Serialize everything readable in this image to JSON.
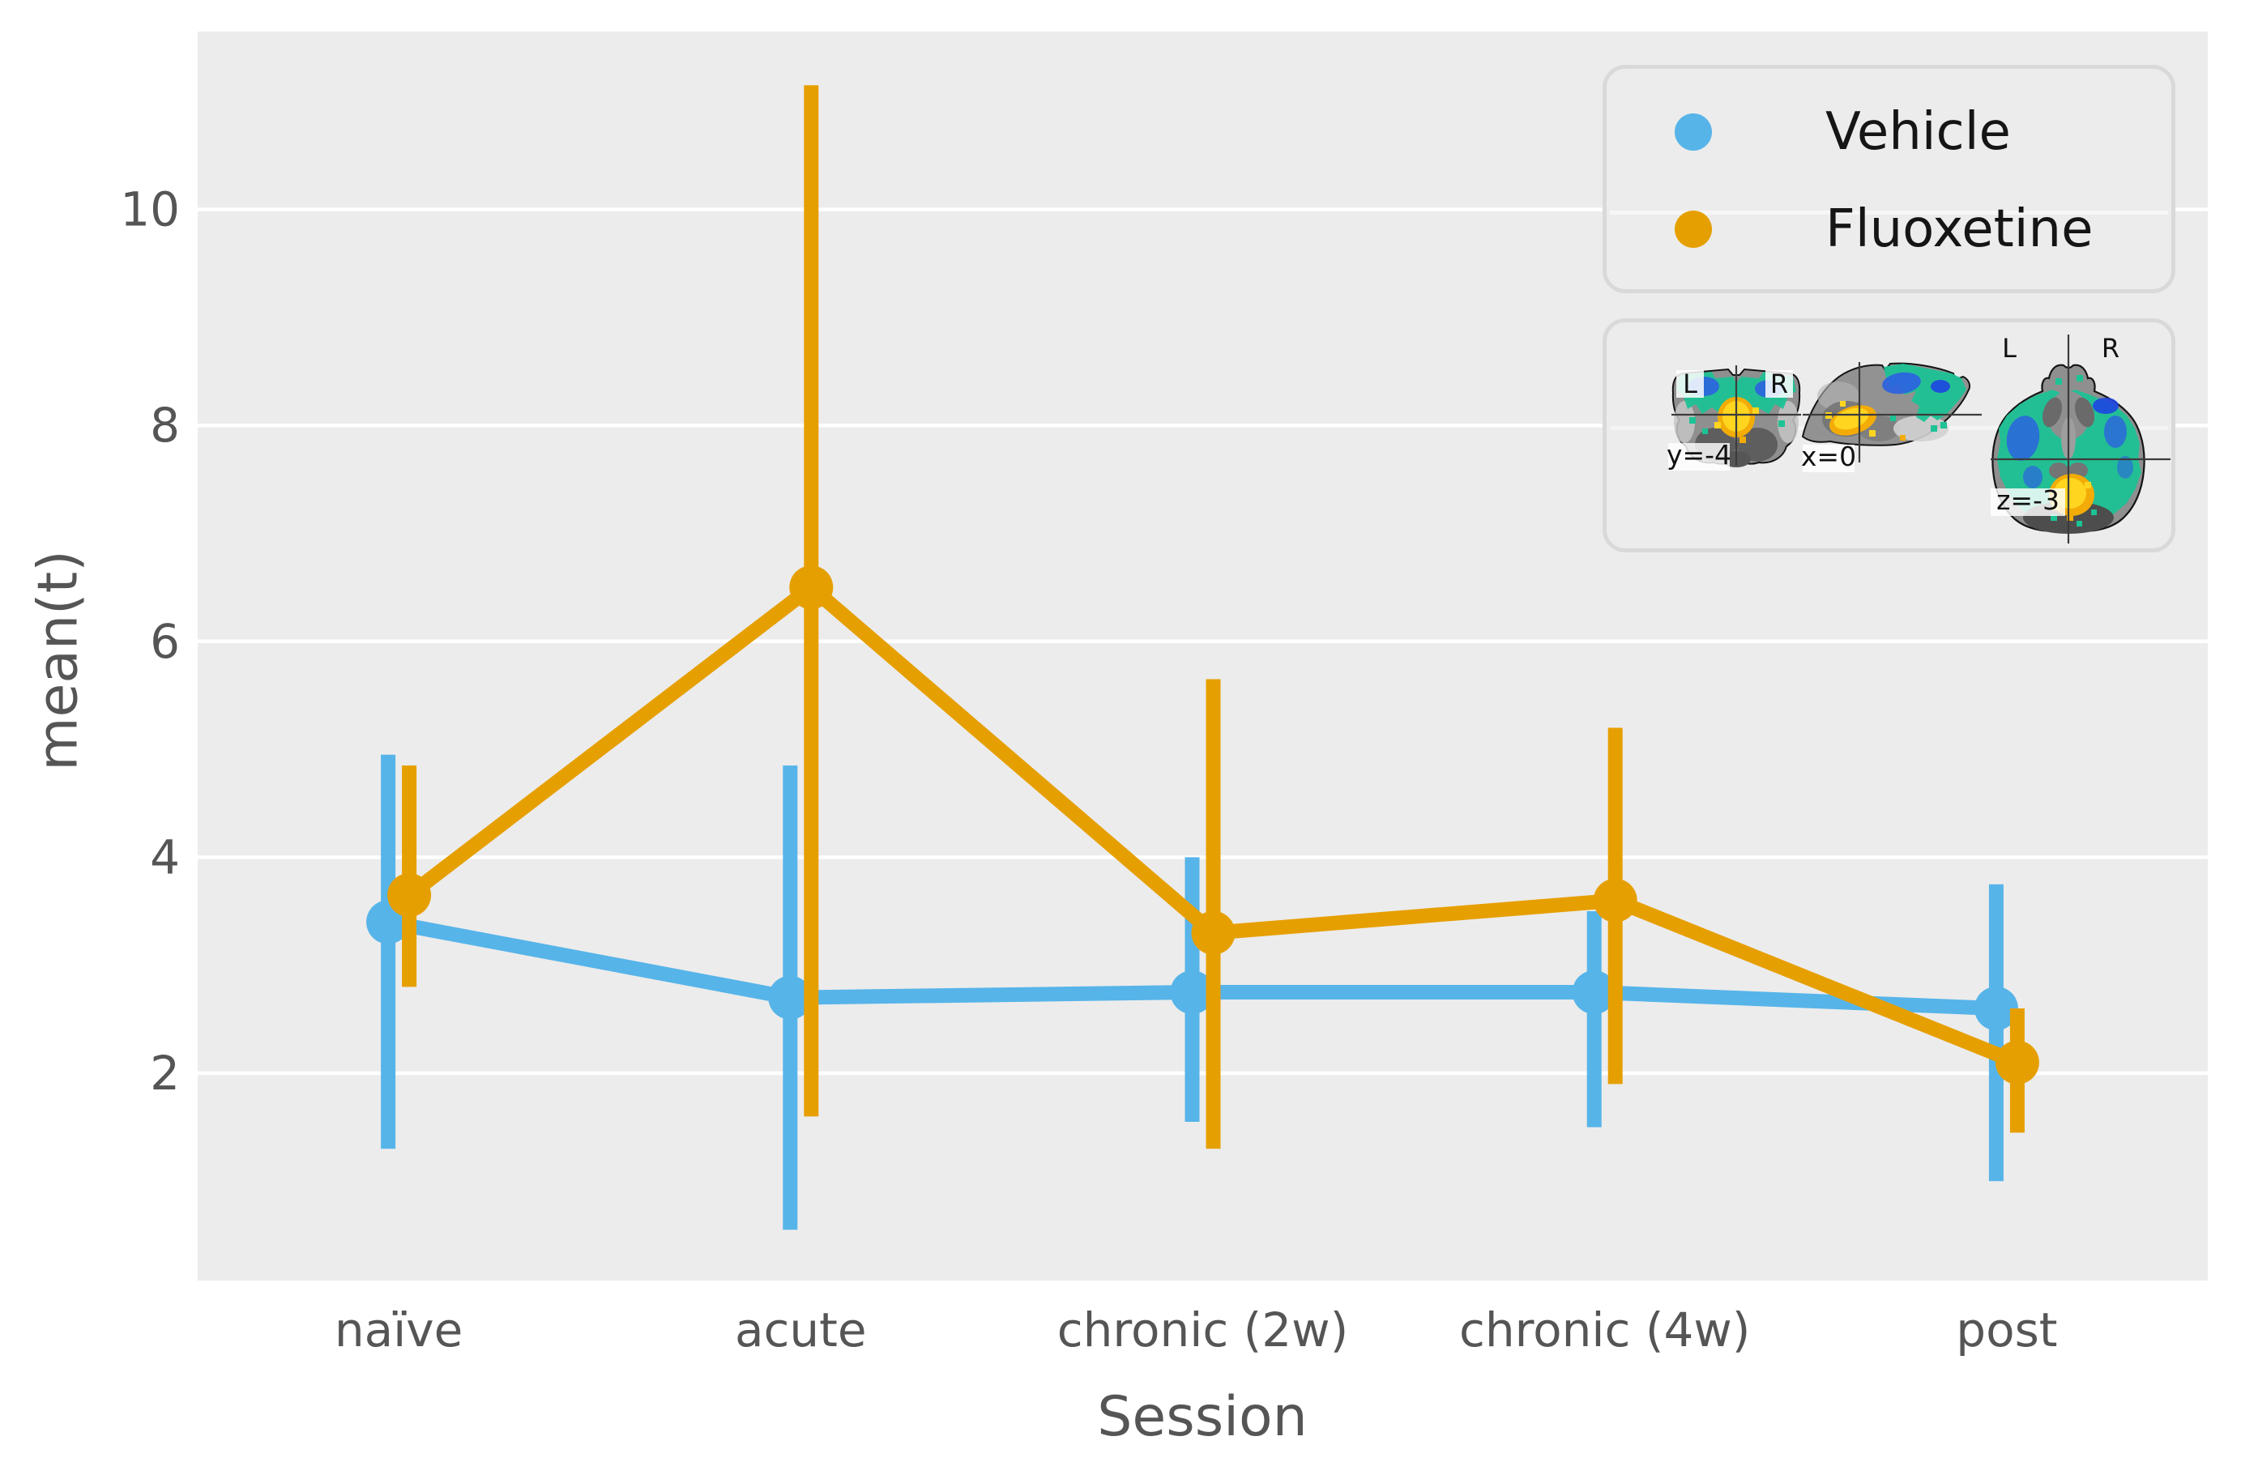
{
  "figure": {
    "background": "#ffffff",
    "plot_background": "#ECECEC",
    "gridline_color": "#ffffff",
    "tick_text_color": "#555555"
  },
  "chart_data": {
    "type": "line",
    "title": "",
    "xlabel": "Session",
    "ylabel": "mean(t)",
    "categories": [
      "naïve",
      "acute",
      "chronic (2w)",
      "chronic (4w)",
      "post"
    ],
    "yticks": [
      2,
      4,
      6,
      8,
      10
    ],
    "ylim": [
      0.1,
      11.65
    ],
    "grid": "horizontal-white-on-gray",
    "legend_position": "upper right",
    "marker": "point-with-error-bars",
    "series": [
      {
        "name": "Vehicle",
        "color": "#56B4E9",
        "means": [
          3.4,
          2.7,
          2.75,
          2.75,
          2.6
        ],
        "err_low": [
          1.3,
          0.55,
          1.55,
          1.5,
          1.0
        ],
        "err_high": [
          4.95,
          4.85,
          4.0,
          3.5,
          3.75
        ]
      },
      {
        "name": "Fluoxetine",
        "color": "#E69F00",
        "means": [
          3.65,
          6.5,
          3.3,
          3.6,
          2.1
        ],
        "err_low": [
          2.8,
          1.6,
          1.3,
          1.9,
          1.45
        ],
        "err_high": [
          4.85,
          11.15,
          5.65,
          5.2,
          2.6
        ]
      }
    ]
  },
  "inset": {
    "slices": [
      {
        "plane": "coronal",
        "coord_label": "y=-4",
        "left_label": "L",
        "right_label": "R"
      },
      {
        "plane": "sagittal",
        "coord_label": "x=0"
      },
      {
        "plane": "axial",
        "coord_label": "z=-3",
        "left_label": "L",
        "right_label": "R"
      }
    ],
    "overlay_colors": {
      "positive": "#FFD51F",
      "negative_teal": "#1DC295",
      "negative_blue": "#2C63DF"
    }
  }
}
